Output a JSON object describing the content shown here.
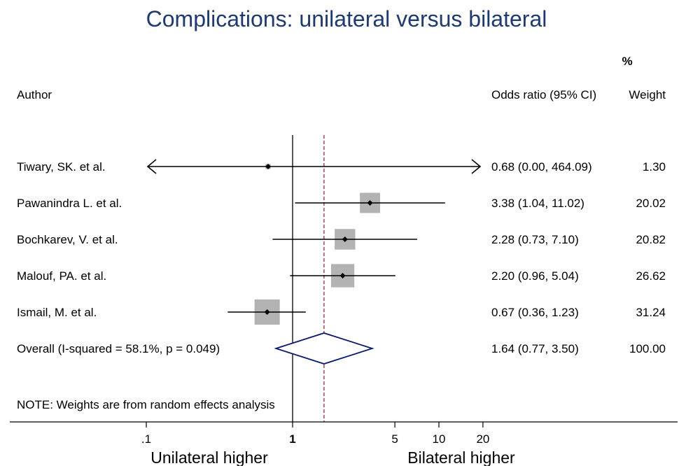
{
  "chart_data": {
    "type": "forest",
    "title": "Complications: unilateral versus bilateral",
    "column_headers": {
      "author": "Author",
      "effect": "Odds ratio (95% CI)",
      "weight_top": "%",
      "weight": "Weight"
    },
    "studies": [
      {
        "author": "Tiwary, SK. et al.",
        "or": 0.68,
        "lower": 0.0,
        "upper": 464.09,
        "ci_text": "0.68 (0.00, 464.09)",
        "weight": 1.3,
        "weight_text": "1.30",
        "arrow_left": true,
        "arrow_right": true
      },
      {
        "author": "Pawanindra L. et al.",
        "or": 3.38,
        "lower": 1.04,
        "upper": 11.02,
        "ci_text": "3.38 (1.04, 11.02)",
        "weight": 20.02,
        "weight_text": "20.02",
        "arrow_left": false,
        "arrow_right": false
      },
      {
        "author": "Bochkarev, V. et al.",
        "or": 2.28,
        "lower": 0.73,
        "upper": 7.1,
        "ci_text": "2.28 (0.73, 7.10)",
        "weight": 20.82,
        "weight_text": "20.82",
        "arrow_left": false,
        "arrow_right": false
      },
      {
        "author": "Malouf, PA. et al.",
        "or": 2.2,
        "lower": 0.96,
        "upper": 5.04,
        "ci_text": "2.20 (0.96, 5.04)",
        "weight": 26.62,
        "weight_text": "26.62",
        "arrow_left": false,
        "arrow_right": false
      },
      {
        "author": "Ismail, M. et al.",
        "or": 0.67,
        "lower": 0.36,
        "upper": 1.23,
        "ci_text": "0.67 (0.36, 1.23)",
        "weight": 31.24,
        "weight_text": "31.24",
        "arrow_left": false,
        "arrow_right": false
      }
    ],
    "overall": {
      "label": "Overall  (I-squared = 58.1%, p = 0.049)",
      "or": 1.64,
      "lower": 0.77,
      "upper": 3.5,
      "ci_text": "1.64 (0.77, 3.50)",
      "weight_text": "100.00"
    },
    "note": "NOTE: Weights are from random effects analysis",
    "x_axis": {
      "scale": "log",
      "range": [
        0.05,
        29
      ],
      "ticks": [
        {
          "value": 0.1,
          "label": ".1",
          "bold": false
        },
        {
          "value": 1,
          "label": "1",
          "bold": true
        },
        {
          "value": 5,
          "label": "5",
          "bold": false
        },
        {
          "value": 10,
          "label": "10",
          "bold": false
        },
        {
          "value": 20,
          "label": "20",
          "bold": false
        }
      ],
      "null_line": 1,
      "left_label": "Unilateral higher",
      "right_label": "Bilateral higher"
    },
    "colors": {
      "title": "#1f3a6e",
      "weight_box": "#b3b3b3",
      "diamond": "#0a1a6e",
      "overall_line": "#8b1a2b",
      "ink": "#000000"
    }
  }
}
